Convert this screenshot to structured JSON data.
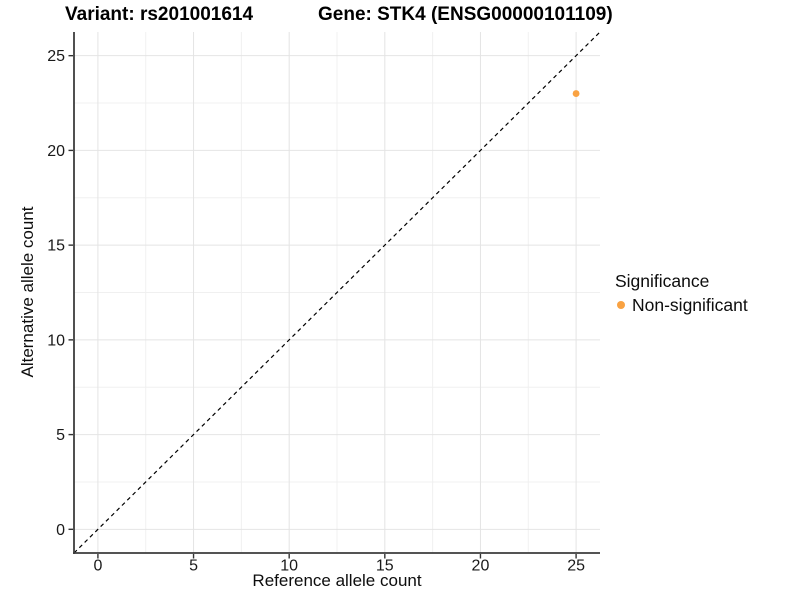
{
  "chart_data": {
    "type": "scatter",
    "title_left": "Variant: rs201001614",
    "title_right": "Gene: STK4 (ENSG00000101109)",
    "xlabel": "Reference allele count",
    "ylabel": "Alternative allele count",
    "xlim": [
      0,
      25
    ],
    "ylim": [
      0,
      25
    ],
    "x_ticks": [
      0,
      5,
      10,
      15,
      20,
      25
    ],
    "y_ticks": [
      0,
      5,
      10,
      15,
      20,
      25
    ],
    "x_minor_ticks": [
      2.5,
      7.5,
      12.5,
      17.5,
      22.5
    ],
    "y_minor_ticks": [
      2.5,
      7.5,
      12.5,
      17.5,
      22.5
    ],
    "grid": true,
    "identity_line": {
      "slope": 1,
      "intercept": 0,
      "style": "dashed",
      "color": "#000000"
    },
    "series": [
      {
        "name": "Non-significant",
        "color": "#F9A242",
        "points": [
          {
            "x": 25,
            "y": 23
          }
        ]
      }
    ],
    "legend": {
      "title": "Significance",
      "position": "right",
      "items": [
        {
          "label": "Non-significant",
          "color": "#F9A242"
        }
      ]
    },
    "colors": {
      "grid_major": "#E4E4E4",
      "grid_minor": "#F0F0F0",
      "axis_line": "#3C3C3C",
      "tick_mark": "#333333",
      "tick_label": "#1A1A1A"
    }
  }
}
